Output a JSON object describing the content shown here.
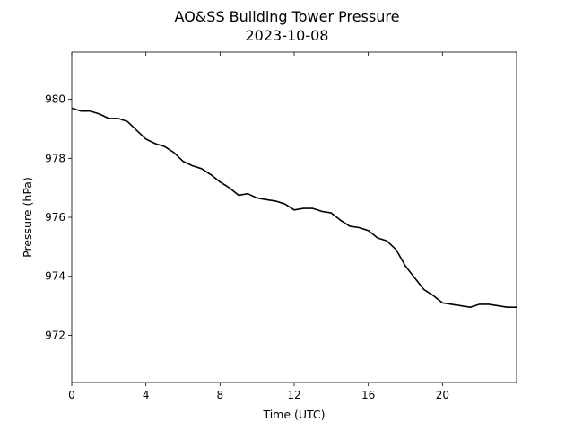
{
  "chart_data": {
    "type": "line",
    "title": "AO&SS Building Tower Pressure",
    "subtitle": "2023-10-08",
    "xlabel": "Time (UTC)",
    "ylabel": "Pressure (hPa)",
    "xlim": [
      0,
      24
    ],
    "ylim": [
      970.4,
      981.6
    ],
    "x_ticks": [
      0,
      4,
      8,
      12,
      16,
      20
    ],
    "x_tick_labels": [
      "0",
      "4",
      "8",
      "12",
      "16",
      "20"
    ],
    "y_ticks": [
      972,
      974,
      976,
      978,
      980
    ],
    "y_tick_labels": [
      "972",
      "974",
      "976",
      "978",
      "980"
    ],
    "grid": false,
    "legend": "none",
    "series": [
      {
        "color": "#000000",
        "x": [
          0,
          0.5,
          1,
          1.5,
          2,
          2.5,
          3,
          3.5,
          4,
          4.5,
          5,
          5.5,
          6,
          6.5,
          7,
          7.5,
          8,
          8.5,
          9,
          9.5,
          10,
          10.5,
          11,
          11.5,
          12,
          12.5,
          13,
          13.5,
          14,
          14.5,
          15,
          15.5,
          16,
          16.5,
          17,
          17.5,
          18,
          18.5,
          19,
          19.5,
          20,
          20.5,
          21,
          21.5,
          22,
          22.5,
          23,
          23.5,
          24
        ],
        "values": [
          979.7,
          979.6,
          979.6,
          979.5,
          979.35,
          979.35,
          979.25,
          978.95,
          978.65,
          978.5,
          978.4,
          978.2,
          977.9,
          977.75,
          977.65,
          977.45,
          977.2,
          977.0,
          976.75,
          976.8,
          976.65,
          976.6,
          976.55,
          976.45,
          976.25,
          976.3,
          976.3,
          976.2,
          976.15,
          975.9,
          975.7,
          975.65,
          975.55,
          975.3,
          975.2,
          974.9,
          974.35,
          973.95,
          973.55,
          973.35,
          973.1,
          973.05,
          973.0,
          972.95,
          973.05,
          973.05,
          973.0,
          972.95,
          972.95
        ]
      }
    ]
  }
}
